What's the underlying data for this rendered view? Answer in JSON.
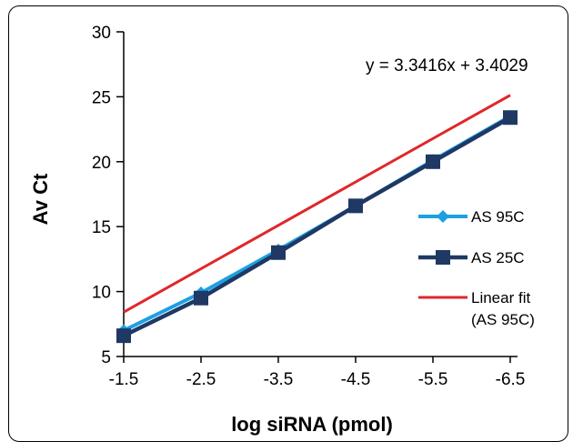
{
  "chart_data": {
    "type": "line",
    "title": "",
    "xlabel": "log siRNA (pmol)",
    "ylabel": "Av Ct",
    "x": [
      -1.5,
      -2.5,
      -3.5,
      -4.5,
      -5.5,
      -6.5
    ],
    "x_tick_labels": [
      "-1.5",
      "-2.5",
      "-3.5",
      "-4.5",
      "-5.5",
      "-6.5"
    ],
    "y_tick_labels": [
      "5",
      "10",
      "15",
      "20",
      "25",
      "30"
    ],
    "xlim": [
      -1.5,
      -6.5
    ],
    "ylim": [
      5,
      30
    ],
    "y_ticks": [
      5,
      10,
      15,
      20,
      25,
      30
    ],
    "grid": false,
    "legend_position": "right",
    "annotation": "y = 3.3416x + 3.4029",
    "series": [
      {
        "name": "AS 95C",
        "marker": "diamond",
        "color": "#1BA1E2",
        "values": [
          7.0,
          9.9,
          13.2,
          16.6,
          20.1,
          23.5
        ]
      },
      {
        "name": "AS 25C",
        "marker": "square",
        "color": "#1F3864",
        "values": [
          6.6,
          9.5,
          13.0,
          16.6,
          20.0,
          23.4
        ]
      },
      {
        "name_lines": [
          "Linear fit",
          "(AS 95C)"
        ],
        "marker": "none",
        "color": "#E0262B",
        "fit": {
          "slope": 3.3416,
          "intercept": 3.4029
        }
      }
    ]
  }
}
